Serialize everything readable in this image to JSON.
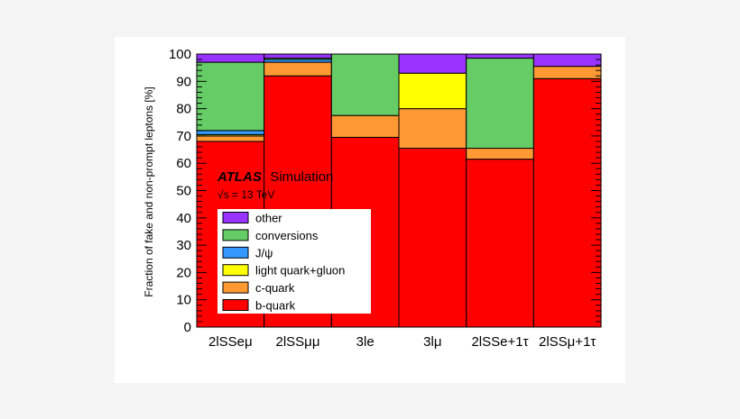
{
  "chart_data": {
    "type": "bar",
    "stacked": true,
    "categories": [
      "2lSSeμ",
      "2lSSμμ",
      "3le",
      "3lμ",
      "2lSSe+1τ",
      "2lSSμ+1τ"
    ],
    "series": [
      {
        "name": "b-quark",
        "color": "#ff0000",
        "values": [
          68,
          92,
          69.5,
          65.5,
          61.5,
          91
        ]
      },
      {
        "name": "c-quark",
        "color": "#ff9933",
        "values": [
          2,
          5,
          8,
          14.5,
          4,
          4.5
        ]
      },
      {
        "name": "light quark+gluon",
        "color": "#ffff00",
        "values": [
          0.5,
          0,
          0,
          13,
          0,
          0
        ]
      },
      {
        "name": "J/ψ",
        "color": "#3399ff",
        "values": [
          1.5,
          1,
          0,
          0,
          0,
          0
        ]
      },
      {
        "name": "conversions",
        "color": "#66cc66",
        "values": [
          25,
          0.5,
          22.5,
          0,
          33,
          0
        ]
      },
      {
        "name": "other",
        "color": "#9933ff",
        "values": [
          3,
          1.5,
          0,
          7,
          1.5,
          4.5
        ]
      }
    ],
    "ylabel": "Fraction of fake and non-prompt leptons [%]",
    "xlabel": "",
    "ylim": [
      0,
      100
    ],
    "yticks": [
      "0",
      "10",
      "20",
      "30",
      "40",
      "50",
      "60",
      "70",
      "80",
      "90",
      "100"
    ],
    "legend_placement": "lower-left",
    "legend_order": [
      "other",
      "conversions",
      "J/ψ",
      "light quark+gluon",
      "c-quark",
      "b-quark"
    ],
    "grid": false,
    "annotation": {
      "experiment": "ATLAS",
      "label": "Simulation",
      "energy": "√s = 13 TeV"
    }
  }
}
